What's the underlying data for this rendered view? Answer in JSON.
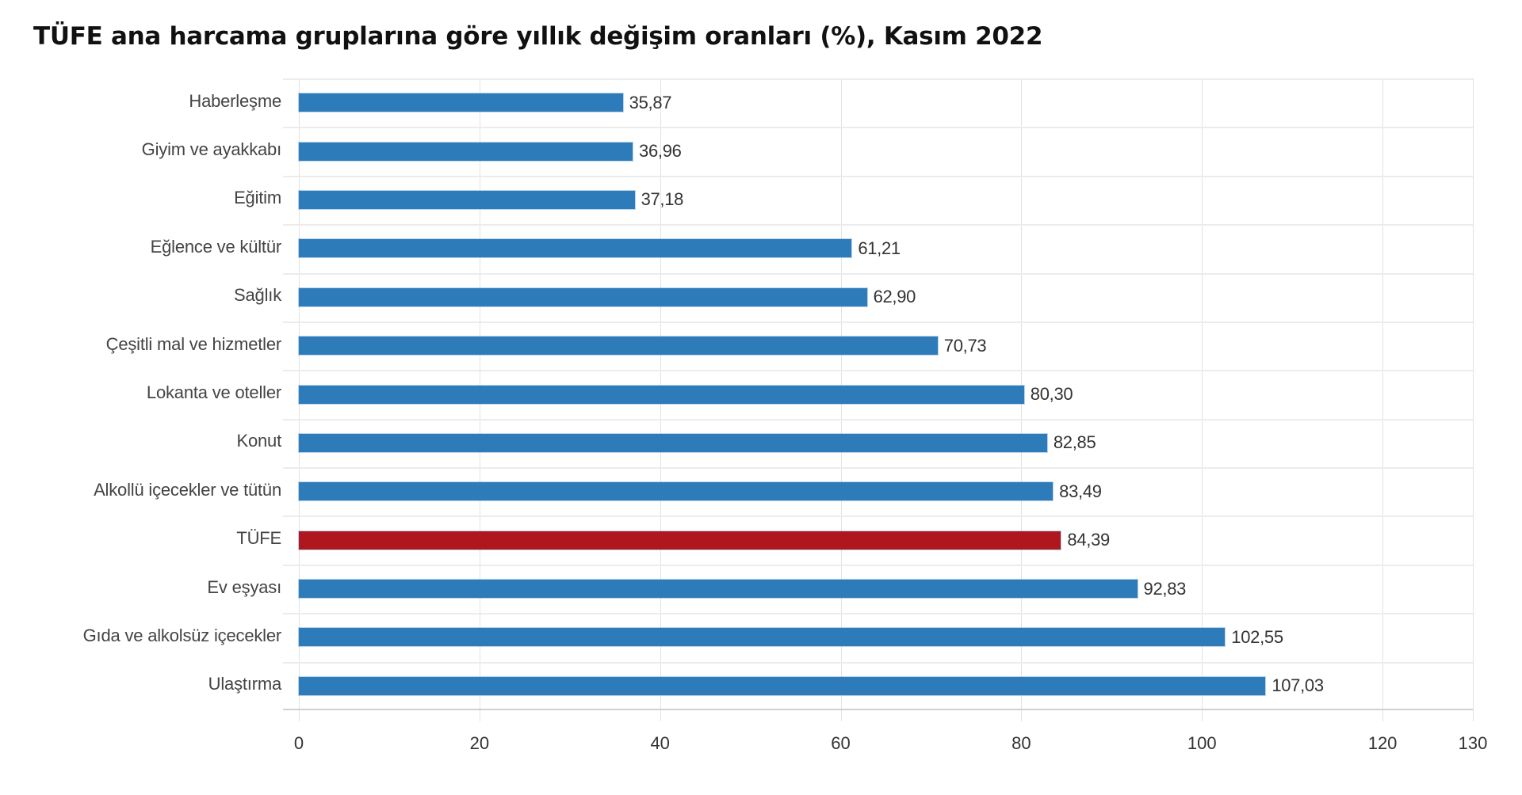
{
  "chart_data": {
    "type": "bar",
    "orientation": "horizontal",
    "title": "TÜFE ana harcama gruplarına göre yıllık değişim oranları (%), Kasım 2022",
    "xlabel": "",
    "ylabel": "",
    "xlim": [
      0,
      130
    ],
    "x_ticks": [
      "0",
      "20",
      "40",
      "60",
      "80",
      "100",
      "120",
      "130"
    ],
    "grid": true,
    "legend": null,
    "colors": {
      "default": "#2e7bb9",
      "highlight": "#b0161e"
    },
    "categories": [
      "Haberleşme",
      "Giyim ve ayakkabı",
      "Eğitim",
      "Eğlence ve kültür",
      "Sağlık",
      "Çeşitli mal ve hizmetler",
      "Lokanta ve oteller",
      "Konut",
      "Alkollü içecekler ve tütün",
      "TÜFE",
      "Ev eşyası",
      "Gıda ve alkolsüz içecekler",
      "Ulaştırma"
    ],
    "values": [
      35.87,
      36.96,
      37.18,
      61.21,
      62.9,
      70.73,
      80.3,
      82.85,
      83.49,
      84.39,
      92.83,
      102.55,
      107.03
    ],
    "value_labels": [
      "35,87",
      "36,96",
      "37,18",
      "61,21",
      "62,90",
      "70,73",
      "80,30",
      "82,85",
      "83,49",
      "84,39",
      "92,83",
      "102,55",
      "107,03"
    ],
    "highlighted": [
      "TÜFE"
    ]
  }
}
